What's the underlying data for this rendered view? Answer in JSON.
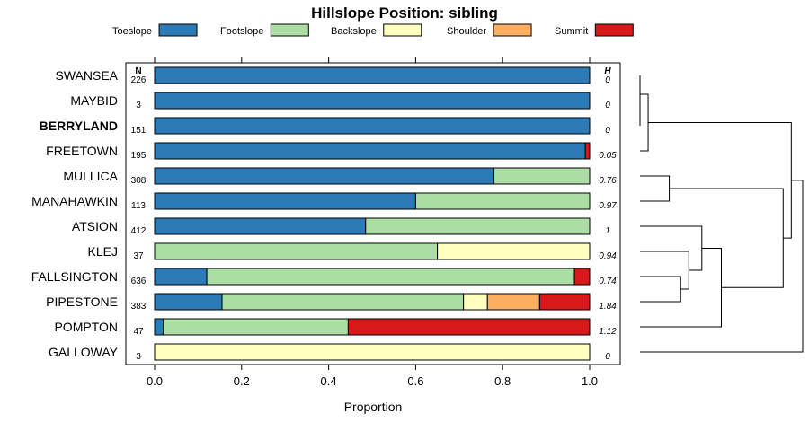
{
  "chart_data": {
    "type": "bar",
    "stacked": true,
    "orientation": "horizontal",
    "title": "Hillslope Position: sibling",
    "xlabel": "Proportion",
    "ylabel": "",
    "xlim": [
      0,
      1
    ],
    "xticks": [
      "0.0",
      "0.2",
      "0.4",
      "0.6",
      "0.8",
      "1.0"
    ],
    "xtick_values": [
      0,
      0.2,
      0.4,
      0.6,
      0.8,
      1.0
    ],
    "n_header": "N",
    "h_header": "H",
    "highlight": "BERRYLAND",
    "legend": {
      "position": "top",
      "entries": [
        {
          "name": "Toeslope",
          "color": "#2c7bb6"
        },
        {
          "name": "Footslope",
          "color": "#abdda4"
        },
        {
          "name": "Backslope",
          "color": "#ffffbf"
        },
        {
          "name": "Shoulder",
          "color": "#fdae61"
        },
        {
          "name": "Summit",
          "color": "#d7191c"
        }
      ]
    },
    "rows": [
      {
        "label": "SWANSEA",
        "n": "226",
        "h": "0",
        "values": [
          1.0,
          0,
          0,
          0,
          0
        ]
      },
      {
        "label": "MAYBID",
        "n": "3",
        "h": "0",
        "values": [
          1.0,
          0,
          0,
          0,
          0
        ]
      },
      {
        "label": "BERRYLAND",
        "n": "151",
        "h": "0",
        "values": [
          1.0,
          0,
          0,
          0,
          0
        ]
      },
      {
        "label": "FREETOWN",
        "n": "195",
        "h": "0.05",
        "values": [
          0.99,
          0,
          0,
          0,
          0.01
        ]
      },
      {
        "label": "MULLICA",
        "n": "308",
        "h": "0.76",
        "values": [
          0.78,
          0.22,
          0,
          0,
          0
        ]
      },
      {
        "label": "MANAHAWKIN",
        "n": "113",
        "h": "0.97",
        "values": [
          0.6,
          0.4,
          0,
          0,
          0
        ]
      },
      {
        "label": "ATSION",
        "n": "412",
        "h": "1",
        "values": [
          0.485,
          0.515,
          0,
          0,
          0
        ]
      },
      {
        "label": "KLEJ",
        "n": "37",
        "h": "0.94",
        "values": [
          0,
          0.65,
          0.35,
          0,
          0
        ]
      },
      {
        "label": "FALLSINGTON",
        "n": "636",
        "h": "0.74",
        "values": [
          0.12,
          0.845,
          0,
          0,
          0.035
        ]
      },
      {
        "label": "PIPESTONE",
        "n": "383",
        "h": "1.84",
        "values": [
          0.155,
          0.555,
          0.055,
          0.12,
          0.115
        ]
      },
      {
        "label": "POMPTON",
        "n": "47",
        "h": "1.12",
        "values": [
          0.02,
          0.425,
          0,
          0,
          0.555
        ]
      },
      {
        "label": "GALLOWAY",
        "n": "3",
        "h": "0",
        "values": [
          0,
          0,
          1.0,
          0,
          0
        ]
      }
    ],
    "dendrogram": {
      "leaves": [
        "SWANSEA",
        "MAYBID",
        "BERRYLAND",
        "FREETOWN",
        "MULLICA",
        "MANAHAWKIN",
        "ATSION",
        "KLEJ",
        "FALLSINGTON",
        "PIPESTONE",
        "POMPTON",
        "GALLOWAY"
      ],
      "merges": [
        {
          "a": "MAYBID",
          "b": "BERRYLAND",
          "height": 0.0
        },
        {
          "a": "SWANSEA",
          "b": "MAYBID+BERRYLAND",
          "height": 0.0
        },
        {
          "a": "FREETOWN",
          "b": "SWANSEA+MAYBID+BERRYLAND",
          "height": 0.05
        },
        {
          "a": "MULLICA",
          "b": "MANAHAWKIN",
          "height": 0.18
        },
        {
          "a": "FALLSINGTON",
          "b": "PIPESTONE",
          "height": 0.25
        },
        {
          "a": "KLEJ",
          "b": "FALLSINGTON+PIPESTONE",
          "height": 0.3
        },
        {
          "a": "ATSION",
          "b": "KLEJ+FALLSINGTON+PIPESTONE",
          "height": 0.38
        },
        {
          "a": "ATSION+KLEJ+FALLSINGTON+PIPESTONE",
          "b": "POMPTON",
          "height": 0.5
        },
        {
          "a": "MULLICA+MANAHAWKIN",
          "b": "ATSION+KLEJ+FALLSINGTON+PIPESTONE+POMPTON",
          "height": 0.88
        },
        {
          "a": "FREETOWN+SWANSEA+MAYBID+BERRYLAND",
          "b": "MULLICA+MANAHAWKIN+ATSION+KLEJ+FALLSINGTON+PIPESTONE+POMPTON",
          "height": 0.93
        },
        {
          "a": "GALLOWAY",
          "b": "all-others",
          "height": 1.0
        }
      ]
    }
  }
}
